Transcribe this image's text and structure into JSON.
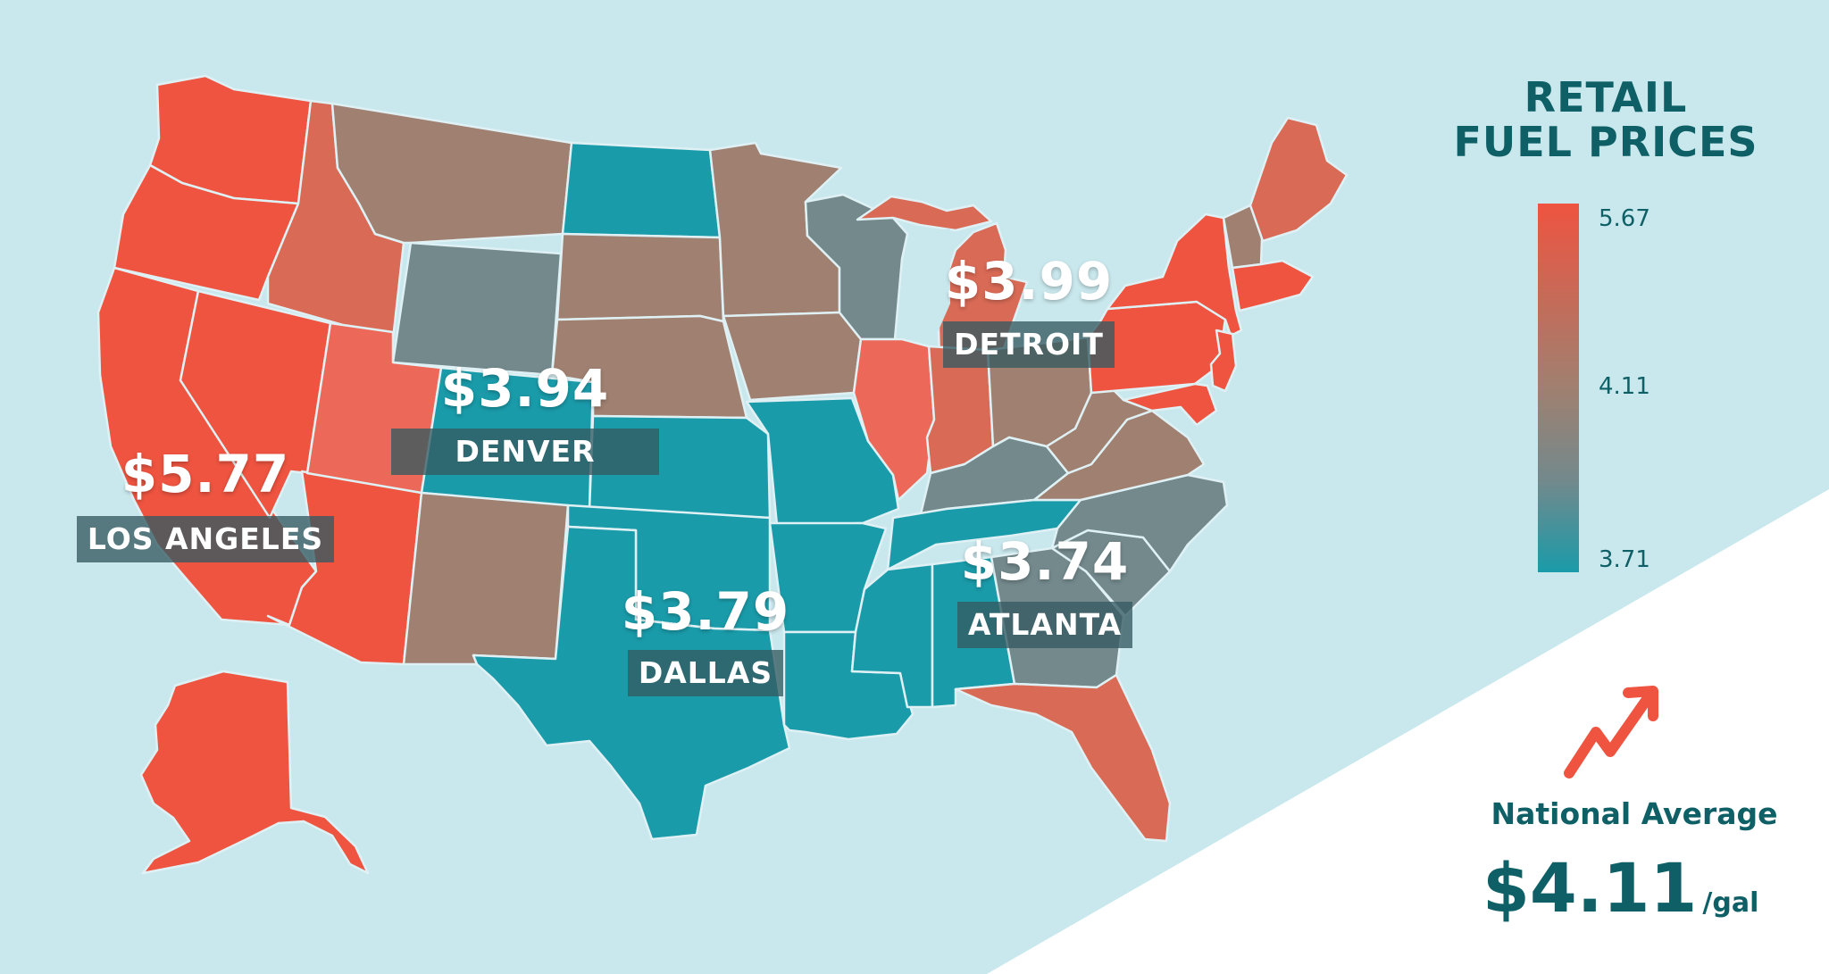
{
  "legend": {
    "title_line1": "RETAIL",
    "title_line2": "FUEL PRICES",
    "max": "5.67",
    "mid": "4.11",
    "min": "3.71",
    "colors": {
      "high": "#ee5440",
      "mid": "#a08070",
      "low": "#1a9ba9"
    }
  },
  "cities": [
    {
      "name": "LOS ANGELES",
      "price": "$5.77"
    },
    {
      "name": "DENVER",
      "price": "$3.94"
    },
    {
      "name": "DALLAS",
      "price": "$3.79"
    },
    {
      "name": "DETROIT",
      "price": "$3.99"
    },
    {
      "name": "ATLANTA",
      "price": "$3.74"
    }
  ],
  "national": {
    "label": "National Average",
    "price": "$4.11",
    "unit": "/gal",
    "trend_icon": "trending-up-arrow-icon"
  },
  "palette": {
    "background": "#c9e8ed",
    "panel": "#ffffff",
    "text": "#0e5f66",
    "red": "#ee5440",
    "red_light": "#ec6858",
    "orange_brown": "#d86a56",
    "brown": "#a08070",
    "slate": "#73898c",
    "teal": "#1a9ba9"
  }
}
